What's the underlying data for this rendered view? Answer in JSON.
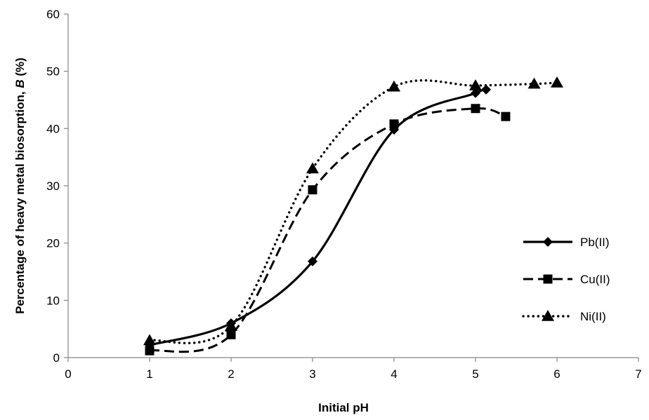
{
  "chart_data": {
    "type": "line",
    "title": "",
    "xlabel": "Initial pH",
    "ylabel_main": "Percentage of heavy metal biosorption, ",
    "ylabel_italic": "B",
    "ylabel_suffix": " (%)",
    "xlim": [
      0,
      7
    ],
    "ylim": [
      0,
      60
    ],
    "x_ticks": [
      0,
      1,
      2,
      3,
      4,
      5,
      6,
      7
    ],
    "y_ticks": [
      0,
      10,
      20,
      30,
      40,
      50,
      60
    ],
    "grid": false,
    "legend_position": "right",
    "smooth": true,
    "series": [
      {
        "name": "Pb(II)",
        "marker": "diamond",
        "line_style": "solid",
        "color": "#000000",
        "x": [
          1,
          2,
          3,
          4,
          5,
          5.13
        ],
        "y": [
          2.2,
          6.0,
          16.8,
          39.8,
          46.2,
          46.8
        ]
      },
      {
        "name": "Cu(II)",
        "marker": "square",
        "line_style": "dashed",
        "color": "#000000",
        "x": [
          1,
          2,
          3,
          4,
          5,
          5.37
        ],
        "y": [
          1.2,
          4.0,
          29.3,
          40.8,
          43.5,
          42.1
        ]
      },
      {
        "name": "Ni(II)",
        "marker": "triangle",
        "line_style": "dotted",
        "color": "#000000",
        "x": [
          1,
          2,
          3,
          4,
          5,
          5.72,
          6
        ],
        "y": [
          3.0,
          5.5,
          33.0,
          47.3,
          47.5,
          47.8,
          48.0
        ]
      }
    ]
  }
}
